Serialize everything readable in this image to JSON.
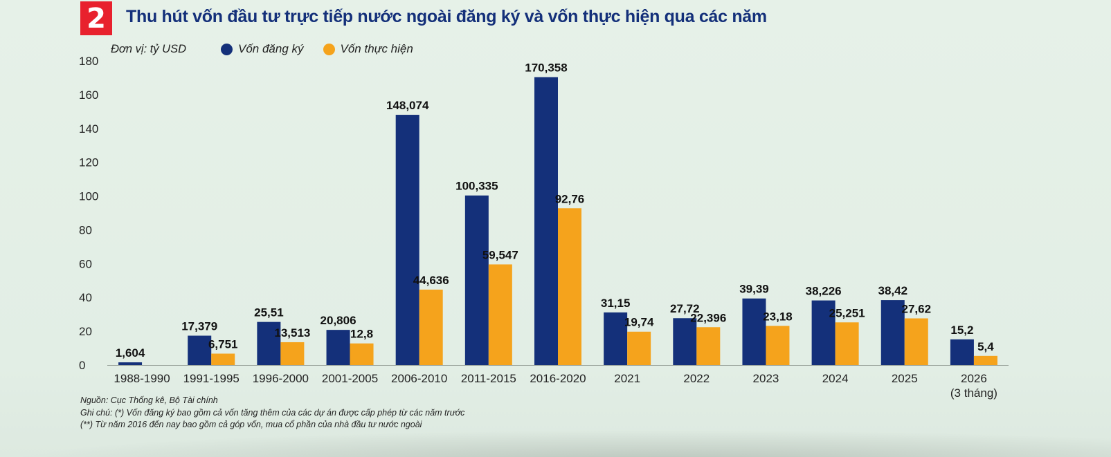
{
  "badge": "2",
  "title": "Thu hút vốn đầu tư trực tiếp nước ngoài đăng ký và vốn thực hiện qua các năm",
  "unit": "Đơn vị: tỷ USD",
  "colors": {
    "badge": "#e8212d",
    "title": "#14307a",
    "registered": "#14307a",
    "disbursed": "#f5a31c"
  },
  "notes": [
    "Nguồn: Cục Thống kê, Bộ Tài chính",
    "Ghi chú: (*) Vốn đăng ký bao gồm cả vốn tăng thêm của các dự án được cấp phép từ các năm trước",
    "(**) Từ năm 2016 đến nay bao gồm cả góp vốn, mua cổ phần của nhà đầu tư nước ngoài"
  ],
  "chart_data": {
    "type": "bar",
    "categories": [
      "1988-1990",
      "1991-1995",
      "1996-2000",
      "2001-2005",
      "2006-2010",
      "2011-2015",
      "2016-2020",
      "2021",
      "2022",
      "2023",
      "2024",
      "2025",
      "2026\n(3 tháng)"
    ],
    "series": [
      {
        "name": "Vốn đăng ký",
        "color": "#14307a",
        "values": [
          1.604,
          17.379,
          25.51,
          20.806,
          148.074,
          100.335,
          170.358,
          31.15,
          27.72,
          39.39,
          38.226,
          38.42,
          15.2
        ],
        "labels": [
          "1,604",
          "17,379",
          "25,51",
          "20,806",
          "148,074",
          "100,335",
          "170,358",
          "31,15",
          "27,72",
          "39,39",
          "38,226",
          "38,42",
          "15,2"
        ]
      },
      {
        "name": "Vốn thực hiện",
        "color": "#f5a31c",
        "values": [
          null,
          6.751,
          13.513,
          12.8,
          44.636,
          59.547,
          92.76,
          19.74,
          22.396,
          23.18,
          25.251,
          27.62,
          5.4
        ],
        "labels": [
          "",
          "6,751",
          "13,513",
          "12,8",
          "44,636",
          "59,547",
          "92,76",
          "19,74",
          "22,396",
          "23,18",
          "25,251",
          "27,62",
          "5,4"
        ]
      }
    ],
    "yticks": [
      0,
      20,
      40,
      60,
      80,
      100,
      120,
      140,
      160,
      180
    ],
    "ylim": [
      0,
      180
    ],
    "legend": "top-left",
    "grid": false
  }
}
